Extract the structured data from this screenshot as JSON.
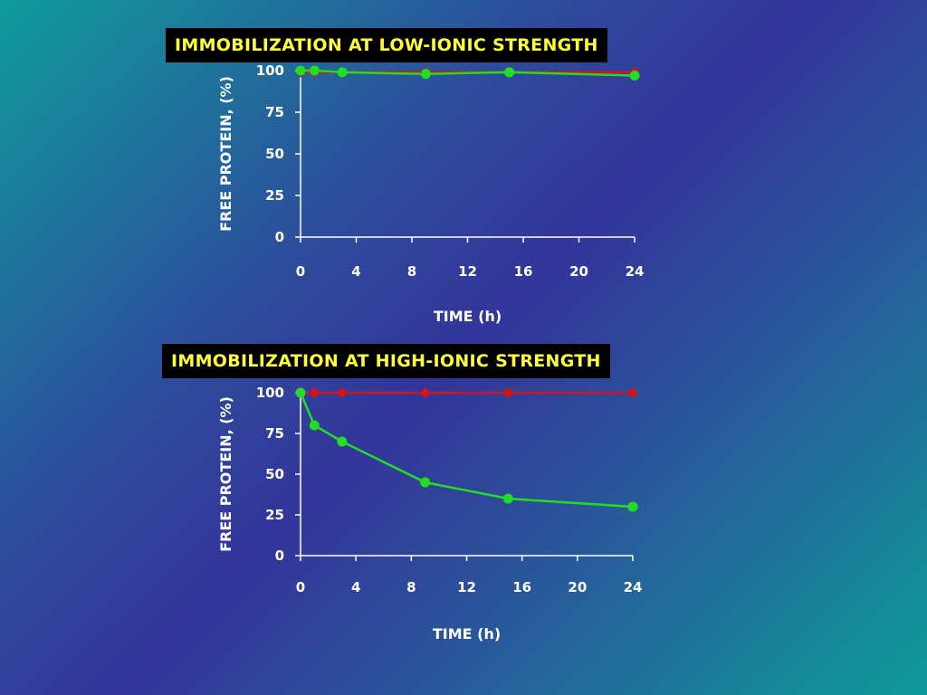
{
  "chart_data": [
    {
      "type": "line",
      "title": "IMMOBILIZATION AT LOW-IONIC STRENGTH",
      "xlabel": "TIME (h)",
      "ylabel": "FREE PROTEIN, (%)",
      "xlim": [
        0,
        24
      ],
      "ylim": [
        0,
        100
      ],
      "xticks": [
        0,
        4,
        8,
        12,
        16,
        20,
        24
      ],
      "yticks": [
        0,
        25,
        50,
        75,
        100
      ],
      "grid": false,
      "series": [
        {
          "color": "#dd1111",
          "marker": "diamond",
          "x": [
            0,
            1,
            3,
            9,
            15,
            24
          ],
          "y": [
            99,
            99,
            99,
            99,
            99,
            99
          ]
        },
        {
          "color": "#22dd22",
          "marker": "circle",
          "x": [
            0,
            1,
            3,
            9,
            15,
            24
          ],
          "y": [
            100,
            100,
            99,
            98,
            99,
            97
          ]
        }
      ]
    },
    {
      "type": "line",
      "title": "IMMOBILIZATION AT HIGH-IONIC STRENGTH",
      "xlabel": "TIME (h)",
      "ylabel": "FREE PROTEIN, (%)",
      "xlim": [
        0,
        24
      ],
      "ylim": [
        0,
        100
      ],
      "xticks": [
        0,
        4,
        8,
        12,
        16,
        20,
        24
      ],
      "yticks": [
        0,
        25,
        50,
        75,
        100
      ],
      "grid": false,
      "series": [
        {
          "color": "#dd1111",
          "marker": "diamond",
          "x": [
            0,
            1,
            3,
            9,
            15,
            24
          ],
          "y": [
            100,
            100,
            100,
            100,
            100,
            100
          ]
        },
        {
          "color": "#22dd22",
          "marker": "circle",
          "x": [
            0,
            1,
            3,
            9,
            15,
            24
          ],
          "y": [
            100,
            80,
            70,
            45,
            35,
            30
          ]
        }
      ]
    }
  ]
}
